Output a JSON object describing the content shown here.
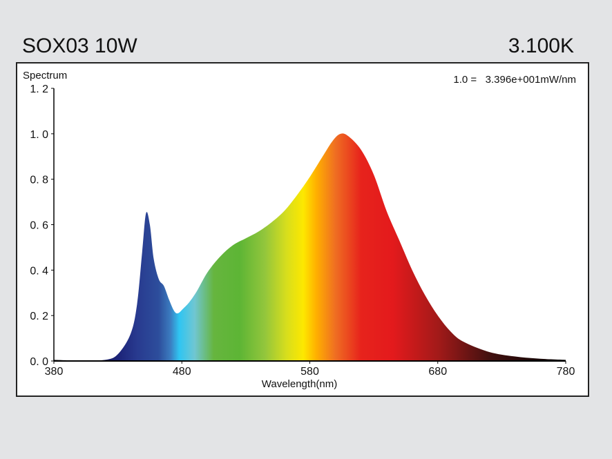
{
  "header": {
    "title": "SOX03 10W",
    "cct": "3.100K"
  },
  "chart_data": {
    "type": "area",
    "title": "SOX03 10W",
    "ylabel": "Spectrum",
    "xlabel": "Wavelength(nm)",
    "annotation": "1.0 =   3.396e+001mW/nm",
    "xlim": [
      380,
      780
    ],
    "ylim": [
      0,
      1.2
    ],
    "xticks": [
      "380",
      "480",
      "580",
      "680",
      "780"
    ],
    "yticks": [
      "0. 0",
      "0. 2",
      "0. 4",
      "0. 6",
      "0. 8",
      "1. 0",
      "1. 2"
    ],
    "x": [
      380,
      400,
      420,
      430,
      440,
      445,
      449,
      452,
      455,
      458,
      462,
      466,
      470,
      474,
      477,
      481,
      486,
      492,
      500,
      510,
      520,
      530,
      540,
      550,
      560,
      570,
      580,
      590,
      598,
      604,
      610,
      620,
      630,
      640,
      650,
      660,
      670,
      680,
      690,
      700,
      720,
      740,
      760,
      780
    ],
    "y": [
      0.005,
      0.002,
      0.005,
      0.03,
      0.12,
      0.25,
      0.48,
      0.65,
      0.6,
      0.45,
      0.36,
      0.33,
      0.27,
      0.22,
      0.21,
      0.23,
      0.26,
      0.31,
      0.39,
      0.46,
      0.51,
      0.54,
      0.57,
      0.61,
      0.66,
      0.73,
      0.81,
      0.9,
      0.97,
      1.0,
      0.99,
      0.93,
      0.82,
      0.66,
      0.53,
      0.4,
      0.29,
      0.2,
      0.13,
      0.085,
      0.04,
      0.02,
      0.01,
      0.005
    ]
  },
  "colors": {
    "spectrum_stops": [
      [
        380,
        "#111111"
      ],
      [
        430,
        "#1c2378"
      ],
      [
        445,
        "#283a8f"
      ],
      [
        462,
        "#2d4e9c"
      ],
      [
        471,
        "#3b7cc0"
      ],
      [
        478,
        "#2fc5f2"
      ],
      [
        490,
        "#70c6d2"
      ],
      [
        505,
        "#66b53e"
      ],
      [
        525,
        "#5db535"
      ],
      [
        545,
        "#93c63c"
      ],
      [
        562,
        "#d8de1c"
      ],
      [
        575,
        "#fde800"
      ],
      [
        585,
        "#ffb000"
      ],
      [
        600,
        "#ef6e22"
      ],
      [
        620,
        "#e7231c"
      ],
      [
        645,
        "#e31a1c"
      ],
      [
        680,
        "#a31a19"
      ],
      [
        720,
        "#431110"
      ],
      [
        780,
        "#000000"
      ]
    ]
  }
}
